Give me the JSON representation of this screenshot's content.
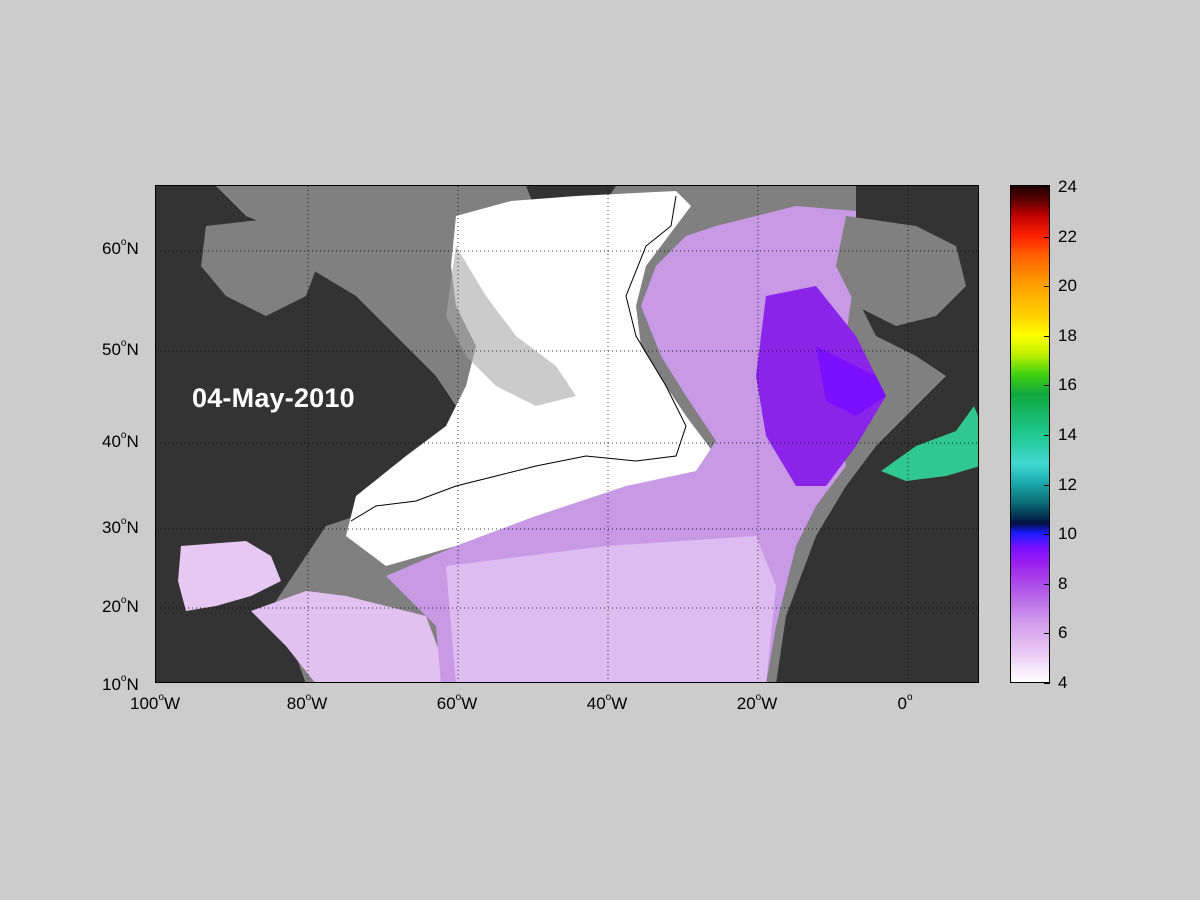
{
  "date_label": "04-May-2010",
  "map": {
    "lon_range": [
      -100,
      10
    ],
    "lat_range": [
      10,
      65
    ],
    "grid": true,
    "colors": {
      "land": "#333333",
      "shelf": "#808080",
      "sea_ice_or_masked": "#ffffff",
      "contour": "#000000"
    },
    "lat_ticks": [
      {
        "deg": "60",
        "suffix": "N"
      },
      {
        "deg": "50",
        "suffix": "N"
      },
      {
        "deg": "40",
        "suffix": "N"
      },
      {
        "deg": "30",
        "suffix": "N"
      },
      {
        "deg": "20",
        "suffix": "N"
      },
      {
        "deg": "10",
        "suffix": "N"
      }
    ],
    "lon_ticks": [
      {
        "deg": "100",
        "suffix": "W"
      },
      {
        "deg": "80",
        "suffix": "W"
      },
      {
        "deg": "60",
        "suffix": "W"
      },
      {
        "deg": "40",
        "suffix": "W"
      },
      {
        "deg": "20",
        "suffix": "W"
      },
      {
        "deg": "0",
        "suffix": ""
      }
    ]
  },
  "colorbar": {
    "ticks": [
      "24",
      "22",
      "20",
      "18",
      "16",
      "14",
      "12",
      "10",
      "8",
      "6",
      "4"
    ],
    "range": [
      4,
      24
    ]
  }
}
